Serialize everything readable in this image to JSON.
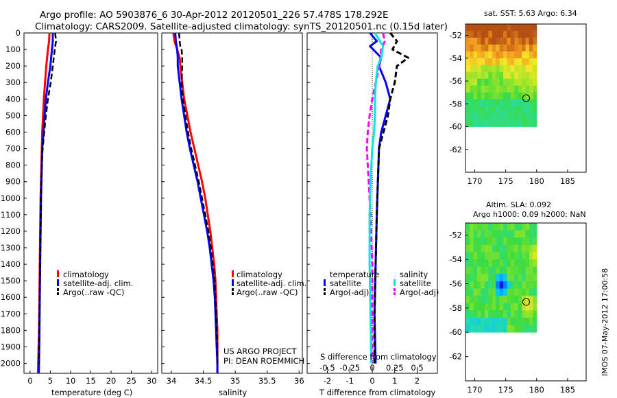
{
  "figure": {
    "title_line1": "Argo profile: AO 5903876_6 30-Apr-2012 20120501_226 57.478S 178.292E",
    "title_line2": "Climatology: CARS2009. Satellite-adjusted climatology: synTS_20120501.nc (0.15d later)",
    "side_stamp": "IMOS 07-May-2012 17:00:58",
    "project_line1": "US ARGO PROJECT",
    "project_line2": "PI: DEAN ROEMMICH"
  },
  "colors": {
    "climatology": "#ff0000",
    "satellite": "#0000ff",
    "argo": "#000000",
    "s_satellite": "#00e5e5",
    "s_argo": "#ff00ff"
  },
  "chart_data": [
    {
      "type": "line",
      "panel": "temperature",
      "xlabel": "temperature (deg C)",
      "xticks": [
        0,
        5,
        10,
        15,
        20,
        25,
        30
      ],
      "xlim": [
        -1.5,
        31.5
      ],
      "ylim": [
        2060,
        0
      ],
      "yticks": [
        0,
        100,
        200,
        300,
        400,
        500,
        600,
        700,
        800,
        900,
        1000,
        1100,
        1200,
        1300,
        1400,
        1500,
        1600,
        1700,
        1800,
        1900,
        2000
      ],
      "legend": [
        "climatology",
        "satellite-adj. clim.",
        "Argo(..raw -QC)"
      ],
      "series": [
        {
          "name": "climatology",
          "points": [
            [
              4.8,
              0
            ],
            [
              4.7,
              50
            ],
            [
              4.4,
              100
            ],
            [
              4.0,
              200
            ],
            [
              3.7,
              300
            ],
            [
              3.4,
              400
            ],
            [
              3.2,
              500
            ],
            [
              3.0,
              600
            ],
            [
              2.9,
              700
            ],
            [
              2.8,
              800
            ],
            [
              2.7,
              900
            ],
            [
              2.6,
              1000
            ],
            [
              2.5,
              1200
            ],
            [
              2.4,
              1400
            ],
            [
              2.3,
              1600
            ],
            [
              2.2,
              1800
            ],
            [
              2.0,
              2000
            ],
            [
              1.95,
              2060
            ]
          ]
        },
        {
          "name": "satellite-adj. clim.",
          "points": [
            [
              5.6,
              0
            ],
            [
              5.6,
              50
            ],
            [
              5.4,
              100
            ],
            [
              5.0,
              200
            ],
            [
              4.4,
              300
            ],
            [
              3.9,
              400
            ],
            [
              3.6,
              500
            ],
            [
              3.3,
              600
            ],
            [
              3.0,
              700
            ],
            [
              2.9,
              800
            ],
            [
              2.8,
              900
            ],
            [
              2.7,
              1000
            ],
            [
              2.6,
              1200
            ],
            [
              2.5,
              1400
            ],
            [
              2.4,
              1600
            ],
            [
              2.3,
              1800
            ],
            [
              2.2,
              2000
            ],
            [
              2.15,
              2060
            ]
          ]
        },
        {
          "name": "Argo(..raw -QC)",
          "points": [
            [
              6.2,
              0
            ],
            [
              6.4,
              50
            ],
            [
              6.1,
              100
            ],
            [
              5.6,
              200
            ],
            [
              5.1,
              300
            ],
            [
              4.4,
              400
            ],
            [
              3.9,
              500
            ],
            [
              3.5,
              600
            ],
            [
              3.1,
              700
            ],
            [
              2.9,
              800
            ],
            [
              2.8,
              900
            ],
            [
              2.7,
              1000
            ],
            [
              2.6,
              1200
            ],
            [
              2.5,
              1400
            ],
            [
              2.4,
              1600
            ],
            [
              2.3,
              1800
            ],
            [
              2.2,
              2000
            ]
          ]
        }
      ]
    },
    {
      "type": "line",
      "panel": "salinity",
      "xlabel": "salinity",
      "xticks": [
        34,
        34.5,
        35,
        35.5,
        36
      ],
      "xlim": [
        33.85,
        36.05
      ],
      "ylim": [
        2060,
        0
      ],
      "legend": [
        "climatology",
        "satellite-adj. clim.",
        "Argo(..raw -QC)"
      ],
      "series": [
        {
          "name": "climatology",
          "points": [
            [
              34.03,
              0
            ],
            [
              34.05,
              50
            ],
            [
              34.09,
              100
            ],
            [
              34.13,
              150
            ],
            [
              34.14,
              200
            ],
            [
              34.17,
              300
            ],
            [
              34.2,
              400
            ],
            [
              34.25,
              500
            ],
            [
              34.3,
              600
            ],
            [
              34.36,
              700
            ],
            [
              34.42,
              800
            ],
            [
              34.48,
              900
            ],
            [
              34.53,
              1000
            ],
            [
              34.57,
              1100
            ],
            [
              34.61,
              1200
            ],
            [
              34.64,
              1300
            ],
            [
              34.67,
              1400
            ],
            [
              34.69,
              1500
            ],
            [
              34.7,
              1600
            ],
            [
              34.71,
              1700
            ],
            [
              34.72,
              1800
            ],
            [
              34.72,
              1900
            ],
            [
              34.72,
              2000
            ],
            [
              34.72,
              2060
            ]
          ]
        },
        {
          "name": "satellite-adj. clim.",
          "points": [
            [
              34.06,
              0
            ],
            [
              34.07,
              50
            ],
            [
              34.09,
              100
            ],
            [
              34.1,
              150
            ],
            [
              34.1,
              200
            ],
            [
              34.13,
              300
            ],
            [
              34.16,
              400
            ],
            [
              34.2,
              500
            ],
            [
              34.24,
              600
            ],
            [
              34.29,
              700
            ],
            [
              34.35,
              800
            ],
            [
              34.41,
              900
            ],
            [
              34.46,
              1000
            ],
            [
              34.51,
              1100
            ],
            [
              34.56,
              1200
            ],
            [
              34.6,
              1300
            ],
            [
              34.63,
              1400
            ],
            [
              34.66,
              1500
            ],
            [
              34.68,
              1600
            ],
            [
              34.69,
              1700
            ],
            [
              34.7,
              1800
            ],
            [
              34.71,
              1900
            ],
            [
              34.72,
              2000
            ],
            [
              34.72,
              2060
            ]
          ]
        },
        {
          "name": "Argo(..raw -QC)",
          "points": [
            [
              34.12,
              0
            ],
            [
              34.13,
              50
            ],
            [
              34.14,
              80
            ],
            [
              34.16,
              100
            ],
            [
              34.17,
              150
            ],
            [
              34.17,
              200
            ],
            [
              34.16,
              300
            ],
            [
              34.18,
              400
            ],
            [
              34.22,
              500
            ],
            [
              34.26,
              600
            ],
            [
              34.31,
              700
            ],
            [
              34.37,
              800
            ],
            [
              34.43,
              900
            ],
            [
              34.48,
              1000
            ],
            [
              34.53,
              1100
            ],
            [
              34.58,
              1200
            ],
            [
              34.62,
              1300
            ],
            [
              34.65,
              1400
            ],
            [
              34.68,
              1500
            ],
            [
              34.69,
              1600
            ],
            [
              34.7,
              1700
            ],
            [
              34.71,
              1800
            ],
            [
              34.72,
              1900
            ],
            [
              34.72,
              2000
            ]
          ]
        }
      ]
    },
    {
      "type": "line",
      "panel": "difference",
      "xlabel": "T difference from climatology",
      "xlabel_top": "S difference from climatology",
      "xticks": [
        -2,
        -1,
        0,
        1,
        2
      ],
      "xticks_top": [
        "-0.5",
        "-0.25",
        "0",
        "0.25",
        "0.5"
      ],
      "xlim": [
        -2.9,
        2.9
      ],
      "ylim": [
        2060,
        0
      ],
      "legend_temperature_title": "temperature",
      "legend_salinity_title": "salinity",
      "legend_temperature": [
        "satellite",
        "Argo(-adj)"
      ],
      "legend_salinity": [
        "satellite",
        "Argo(-adj)"
      ],
      "series": [
        {
          "name": "T satellite",
          "points": [
            [
              -0.1,
              0
            ],
            [
              0.2,
              50
            ],
            [
              -0.1,
              80
            ],
            [
              0.4,
              150
            ],
            [
              0.3,
              200
            ],
            [
              0.6,
              300
            ],
            [
              0.8,
              400
            ],
            [
              0.6,
              500
            ],
            [
              0.4,
              600
            ],
            [
              0.3,
              700
            ],
            [
              0.25,
              900
            ],
            [
              0.2,
              1100
            ],
            [
              0.15,
              1400
            ],
            [
              0.1,
              1700
            ],
            [
              0.15,
              2000
            ]
          ]
        },
        {
          "name": "T Argo(-adj)",
          "points": [
            [
              0.8,
              0
            ],
            [
              1.1,
              50
            ],
            [
              0.9,
              100
            ],
            [
              1.6,
              150
            ],
            [
              1.1,
              200
            ],
            [
              1.0,
              300
            ],
            [
              0.8,
              400
            ],
            [
              0.7,
              500
            ],
            [
              0.5,
              600
            ],
            [
              0.3,
              700
            ],
            [
              0.25,
              900
            ],
            [
              0.2,
              1100
            ],
            [
              0.15,
              1400
            ],
            [
              0.1,
              1700
            ],
            [
              0.1,
              2000
            ]
          ]
        },
        {
          "name": "S satellite",
          "points": [
            [
              0.03,
              0
            ],
            [
              0.12,
              80
            ],
            [
              0.1,
              150
            ],
            [
              0.06,
              200
            ],
            [
              0.04,
              300
            ],
            [
              0.03,
              400
            ],
            [
              0.03,
              500
            ],
            [
              0.02,
              600
            ],
            [
              0.0,
              700
            ],
            [
              -0.01,
              800
            ],
            [
              -0.02,
              900
            ],
            [
              -0.03,
              1100
            ],
            [
              -0.03,
              1400
            ],
            [
              -0.02,
              1700
            ],
            [
              -0.01,
              2000
            ]
          ]
        },
        {
          "name": "S Argo(-adj)",
          "points": [
            [
              0.12,
              0
            ],
            [
              0.14,
              50
            ],
            [
              0.1,
              100
            ],
            [
              0.08,
              200
            ],
            [
              0.04,
              300
            ],
            [
              0.0,
              400
            ],
            [
              -0.03,
              500
            ],
            [
              -0.05,
              600
            ],
            [
              -0.06,
              700
            ],
            [
              -0.04,
              900
            ],
            [
              -0.02,
              1100
            ],
            [
              0.0,
              1400
            ],
            [
              0.0,
              1700
            ],
            [
              0.0,
              2000
            ]
          ]
        }
      ]
    },
    {
      "type": "heatmap",
      "panel": "sst_map",
      "title": "sat. SST: 5.63 Argo: 6.34",
      "xticks": [
        170,
        175,
        180,
        185
      ],
      "yticks": [
        -52,
        -54,
        -56,
        -58,
        -60,
        -62
      ],
      "lon_range": [
        168.5,
        188
      ],
      "lat_range": [
        -64,
        -51
      ],
      "data_extent": {
        "lon": [
          168.6,
          180
        ],
        "lat": [
          -60,
          -51
        ]
      },
      "argo_location": {
        "lon": 178.3,
        "lat": -57.5
      }
    },
    {
      "type": "heatmap",
      "panel": "sla_map",
      "title_line1": "Altim. SLA: 0.092",
      "title_line2": "Argo h1000: 0.09 h2000: NaN",
      "xticks": [
        170,
        175,
        180,
        185
      ],
      "yticks": [
        -52,
        -54,
        -56,
        -58,
        -60,
        -62
      ],
      "lon_range": [
        168.5,
        188
      ],
      "lat_range": [
        -64,
        -51
      ],
      "data_extent": {
        "lon": [
          168.6,
          180
        ],
        "lat": [
          -60,
          -51
        ]
      },
      "argo_location": {
        "lon": 178.3,
        "lat": -57.5
      }
    }
  ]
}
